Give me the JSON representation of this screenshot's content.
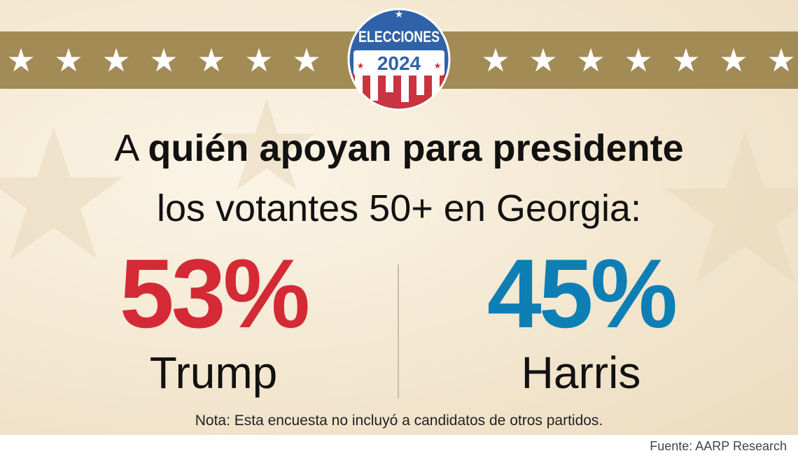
{
  "badge": {
    "top_text": "ELECCIONES",
    "year": "2024",
    "colors": {
      "blue": "#2f62a8",
      "red": "#c8343f",
      "white": "#ffffff"
    }
  },
  "banner": {
    "left_stars": 7,
    "right_stars": 7,
    "band_color": "#a38b56"
  },
  "headline": {
    "lead": "A ",
    "emphasis": "quién apoyan para presidente",
    "subline": "los votantes 50+ en Georgia:"
  },
  "results": [
    {
      "percent": "53%",
      "candidate": "Trump",
      "color": "#d42a36"
    },
    {
      "percent": "45%",
      "candidate": "Harris",
      "color": "#0d7fb5"
    }
  ],
  "note": "Nota: Esta encuesta no incluyó a candidatos de otros partidos.",
  "source": "Fuente: AARP Research"
}
